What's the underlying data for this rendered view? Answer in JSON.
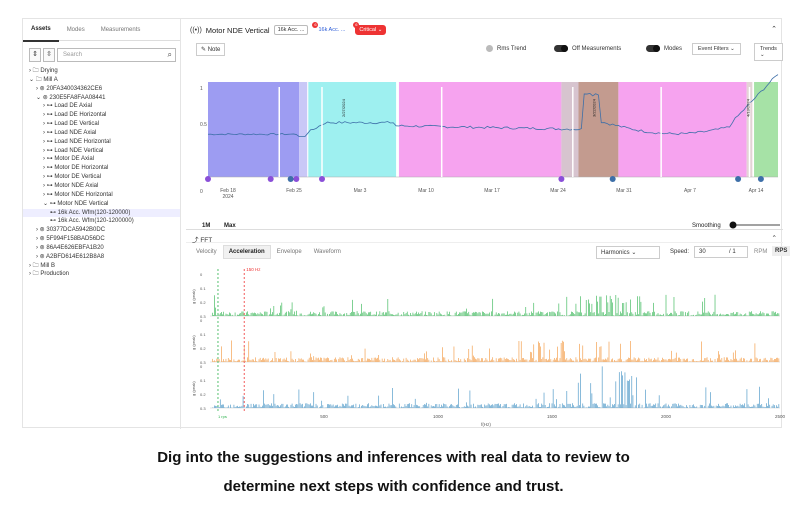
{
  "sidebar": {
    "tabs": [
      "Assets",
      "Modes",
      "Measurements"
    ],
    "search_placeholder": "Search",
    "tree": [
      {
        "t": "› 🗀 Drying",
        "d": 0
      },
      {
        "t": "⌄ 🗀 Mill A",
        "d": 0
      },
      {
        "t": "› ⊚ 20FA340034362CE6",
        "d": 1
      },
      {
        "t": "⌄ ⊚ 230E5FA8FAA08441",
        "d": 1
      },
      {
        "t": "› ⊶ Load DE Axial",
        "d": 2
      },
      {
        "t": "› ⊶ Load DE Horizontal",
        "d": 2
      },
      {
        "t": "› ⊶ Load DE Vertical",
        "d": 2
      },
      {
        "t": "› ⊶ Load NDE Axial",
        "d": 2
      },
      {
        "t": "› ⊶ Load NDE Horizontal",
        "d": 2
      },
      {
        "t": "› ⊶ Load NDE Vertical",
        "d": 2
      },
      {
        "t": "› ⊶ Motor DE Axial",
        "d": 2
      },
      {
        "t": "› ⊶ Motor DE Horizontal",
        "d": 2
      },
      {
        "t": "› ⊶ Motor DE Vertical",
        "d": 2
      },
      {
        "t": "› ⊶ Motor NDE Axial",
        "d": 2
      },
      {
        "t": "› ⊶ Motor NDE Horizontal",
        "d": 2
      },
      {
        "t": "⌄ ⊶ Motor NDE Vertical",
        "d": 2
      },
      {
        "t": "⊷ 16k Acc. Wfm(120-120000)",
        "d": 3,
        "sel": true
      },
      {
        "t": "⊷ 16k Acc. Wfm(120-1200000)",
        "d": 3
      },
      {
        "t": "› ⊚ 30377DCA5942B0DC",
        "d": 1
      },
      {
        "t": "› ⊚ 5F994F158BAD56DC",
        "d": 1
      },
      {
        "t": "› ⊚ 86A4E626EBFA1B20",
        "d": 1
      },
      {
        "t": "› ⊚ A2BFD614E612B8A8",
        "d": 1
      },
      {
        "t": "› 🗀 Mill B",
        "d": 0
      },
      {
        "t": "› 🗀 Production",
        "d": 0
      }
    ]
  },
  "header": {
    "title": "Motor NDE Vertical",
    "pill1": "16k Acc. ...",
    "pill2": "16k Acc. ...",
    "critical": "Critical ⌄",
    "badge1": "6",
    "badge2": "6"
  },
  "controls": {
    "note": "Note",
    "rms": "Rms Trend",
    "off": "Off Measurements",
    "modes": "Modes",
    "filters": "Event Filters ⌄",
    "trends": "Trends ⌄"
  },
  "trend": {
    "yticks": [
      "1",
      "0.5",
      "0"
    ],
    "xticks": [
      "Feb 18\n2024",
      "Feb 25",
      "Mar 3",
      "Mar 10",
      "Mar 17",
      "Mar 24",
      "Mar 31",
      "Apr 7",
      "Apr 14"
    ],
    "ranges": [
      "1M",
      "Max"
    ],
    "smoothing": "Smoothing",
    "annotations": [
      "2/27/2024",
      "3/22/2024",
      "4/13/2024"
    ]
  },
  "fft": {
    "title": "FFT",
    "tabs": [
      "Velocity",
      "Acceleration",
      "Envelope",
      "Waveform"
    ],
    "harmonics": "Harmonics ⌄",
    "speed_label": "Speed:",
    "speed": "30",
    "ratio": "/ 1",
    "units": [
      "RPM",
      "RPS"
    ],
    "marker": "150 Hz",
    "rps": "1 rps",
    "ylabel": "g (peak)",
    "yticks": [
      "0.3",
      "0.2",
      "0.1",
      "0"
    ],
    "xticks": [
      "500",
      "1000",
      "1500",
      "2000",
      "2500"
    ],
    "xlabel": "f(Hz)"
  },
  "chart_data": {
    "type": "line",
    "note": "FFT spectra of three axes; trend of acceleration RMS over Feb–Apr 2024",
    "colors": [
      "#2bb24c",
      "#f29336",
      "#3b8ec2"
    ],
    "xlim": [
      0,
      2500
    ]
  },
  "caption": {
    "line1": "Dig into the suggestions and inferences with real data to review to",
    "line2": "determine next steps with confidence and trust."
  }
}
